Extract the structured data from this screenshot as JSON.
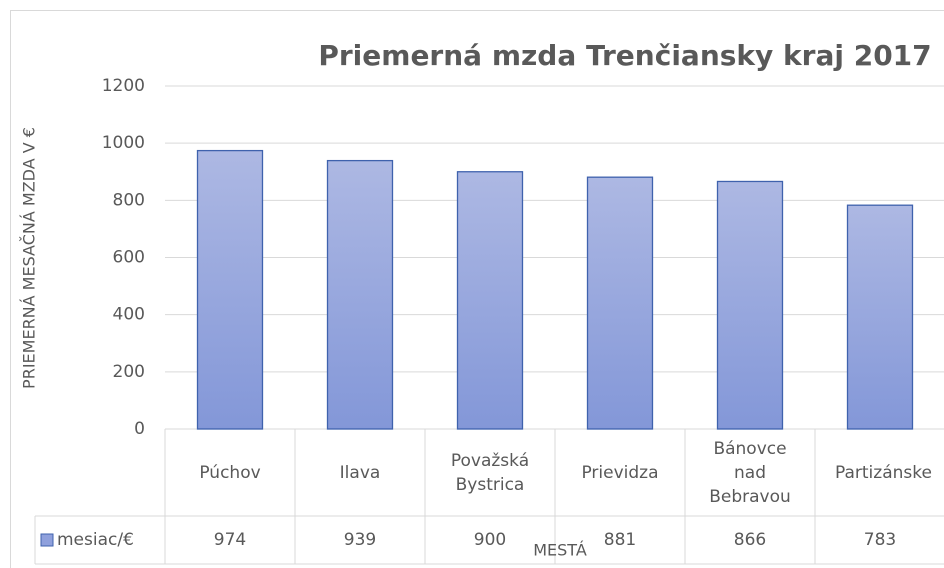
{
  "chart_data": {
    "type": "bar",
    "title": "Priemerná mzda Trenčiansky kraj 2017",
    "y_label": "PRIEMERNÁ MESAČNÁ MZDA V €",
    "x_label": "MESTÁ",
    "categories": [
      "Púchov",
      "Ilava",
      "Považská Bystrica",
      "Prievidza",
      "Bánovce nad Bebravou",
      "Partizánske"
    ],
    "series": [
      {
        "name": "mesiac/€",
        "color": "#8fa0dc",
        "values": [
          974,
          939,
          900,
          881,
          866,
          783
        ]
      }
    ],
    "ylim": [
      0,
      1200
    ],
    "yticks": [
      0,
      200,
      400,
      600,
      800,
      1000,
      1200
    ],
    "grid": true,
    "data_table": true
  }
}
